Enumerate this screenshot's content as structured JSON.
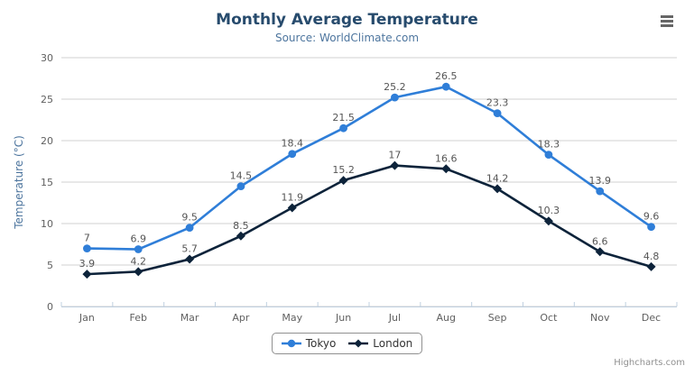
{
  "chart_data": {
    "type": "line",
    "title": "Monthly Average Temperature",
    "subtitle": "Source: WorldClimate.com",
    "categories": [
      "Jan",
      "Feb",
      "Mar",
      "Apr",
      "May",
      "Jun",
      "Jul",
      "Aug",
      "Sep",
      "Oct",
      "Nov",
      "Dec"
    ],
    "series": [
      {
        "name": "Tokyo",
        "color": "#2f7ed8",
        "marker": "circle",
        "values": [
          7,
          6.9,
          9.5,
          14.5,
          18.4,
          21.5,
          25.2,
          26.5,
          23.3,
          18.3,
          13.9,
          9.6
        ]
      },
      {
        "name": "London",
        "color": "#0d233a",
        "marker": "diamond",
        "values": [
          3.9,
          4.2,
          5.7,
          8.5,
          11.9,
          15.2,
          17,
          16.6,
          14.2,
          10.3,
          6.6,
          4.8
        ]
      }
    ],
    "xlabel": "",
    "ylabel": "Temperature (°C)",
    "ylim": [
      0,
      30
    ],
    "ytick_interval": 5,
    "yticks": [
      0,
      5,
      10,
      15,
      20,
      25,
      30
    ],
    "grid": true,
    "data_labels": true,
    "legend_position": "bottom"
  },
  "credits": {
    "label": "Highcharts.com"
  },
  "icons": {
    "context_menu": "hamburger-menu-icon"
  },
  "colors": {
    "title": "#274b6d",
    "subtitle": "#4d759e",
    "axis_title": "#4d759e",
    "axis_labels": "#606060",
    "data_labels": "#555555",
    "gridline": "#d0d0d0",
    "axis_line": "#c0d0e0",
    "legend_border": "#909090",
    "legend_text": "#333333",
    "credits_text": "#909090",
    "menu_icon": "#666666",
    "background": "#ffffff"
  }
}
